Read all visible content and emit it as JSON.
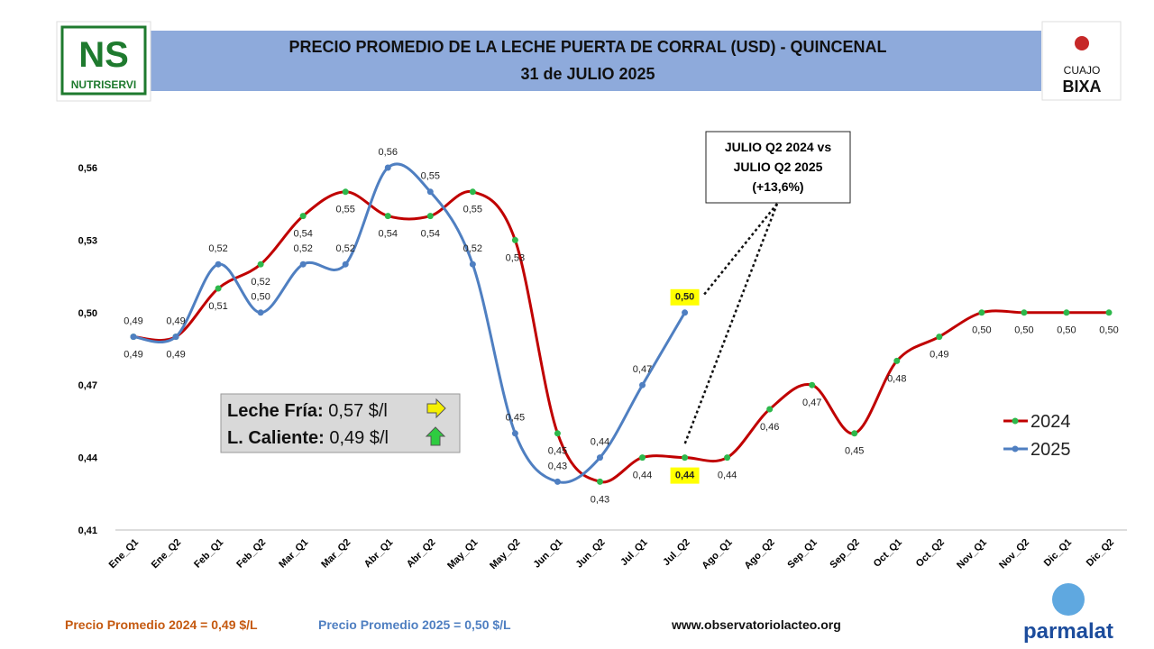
{
  "header": {
    "title_line1": "PRECIO PROMEDIO DE LA LECHE PUERTA DE CORRAL (USD) - QUINCENAL",
    "title_line2": "31 de JULIO 2025"
  },
  "logos": {
    "left_mark": "NS",
    "left_name": "NUTRISERVI",
    "right_top": "CUAJO",
    "right_bottom": "BIXA",
    "bottom_right": "parmalat"
  },
  "chart_data": {
    "type": "line",
    "categories": [
      "Ene_Q1",
      "Ene_Q2",
      "Feb_Q1",
      "Feb_Q2",
      "Mar_Q1",
      "Mar_Q2",
      "Abr_Q1",
      "Abr_Q2",
      "May_Q1",
      "May_Q2",
      "Jun_Q1",
      "Jun_Q2",
      "Jul_Q1",
      "Jul_Q2",
      "Ago_Q1",
      "Ago_Q2",
      "Sep_Q1",
      "Sep_Q2",
      "Oct_Q1",
      "Oct_Q2",
      "Nov_Q1",
      "Nov_Q2",
      "Dic_Q1",
      "Dic_Q2"
    ],
    "series": [
      {
        "name": "2024",
        "color": "#c00000",
        "marker_color": "#2db84b",
        "values": [
          0.49,
          0.49,
          0.51,
          0.52,
          0.54,
          0.55,
          0.54,
          0.54,
          0.55,
          0.53,
          0.45,
          0.43,
          0.44,
          0.44,
          0.44,
          0.46,
          0.47,
          0.45,
          0.48,
          0.49,
          0.5,
          0.5,
          0.5,
          0.5
        ],
        "value_labels": [
          "0,49",
          "0,49",
          "0,51",
          "0,52",
          "0,54",
          "0,55",
          "0,54",
          "0,54",
          "0,55",
          "0,53",
          "0,45",
          "0,43",
          "0,44",
          "0,44",
          "0,44",
          "0,46",
          "0,47",
          "0,45",
          "0,48",
          "0,49",
          "0,50",
          "0,50",
          "0,50",
          "0,50"
        ]
      },
      {
        "name": "2025",
        "color": "#4f7fc1",
        "marker_color": "#4f7fc1",
        "values": [
          0.49,
          0.49,
          0.52,
          0.5,
          0.52,
          0.52,
          0.56,
          0.55,
          0.52,
          0.45,
          0.43,
          0.44,
          0.47,
          0.5,
          null,
          null,
          null,
          null,
          null,
          null,
          null,
          null,
          null,
          null
        ],
        "value_labels": [
          "0,49",
          "0,49",
          "0,52",
          "0,50",
          "0,52",
          "0,52",
          "0,56",
          "0,55",
          "0,52",
          "0,45",
          "0,43",
          "0,44",
          "0,47",
          "0,50",
          null,
          null,
          null,
          null,
          null,
          null,
          null,
          null,
          null,
          null
        ]
      }
    ],
    "ylim": [
      0.41,
      0.56
    ],
    "yticks": [
      {
        "value": 0.41,
        "label": "0,41"
      },
      {
        "value": 0.44,
        "label": "0,44"
      },
      {
        "value": 0.47,
        "label": "0,47"
      },
      {
        "value": 0.5,
        "label": "0,50"
      },
      {
        "value": 0.53,
        "label": "0,53"
      },
      {
        "value": 0.56,
        "label": "0,56"
      }
    ],
    "grid": false,
    "legend": "right",
    "annotations": {
      "compare_line1": "JULIO Q2 2024 vs",
      "compare_line2": "JULIO Q2 2025",
      "compare_line3": "(+13,6%)",
      "cold_label": "Leche Fría:",
      "cold_value": "0,57 $/l",
      "hot_label": "L. Caliente:",
      "hot_value": "0,49 $/l"
    }
  },
  "footer": {
    "avg_2024": "Precio Promedio 2024 = 0,49 $/L",
    "avg_2025": "Precio Promedio 2025 = 0,50 $/L",
    "website": "www.observatoriolacteo.org"
  }
}
